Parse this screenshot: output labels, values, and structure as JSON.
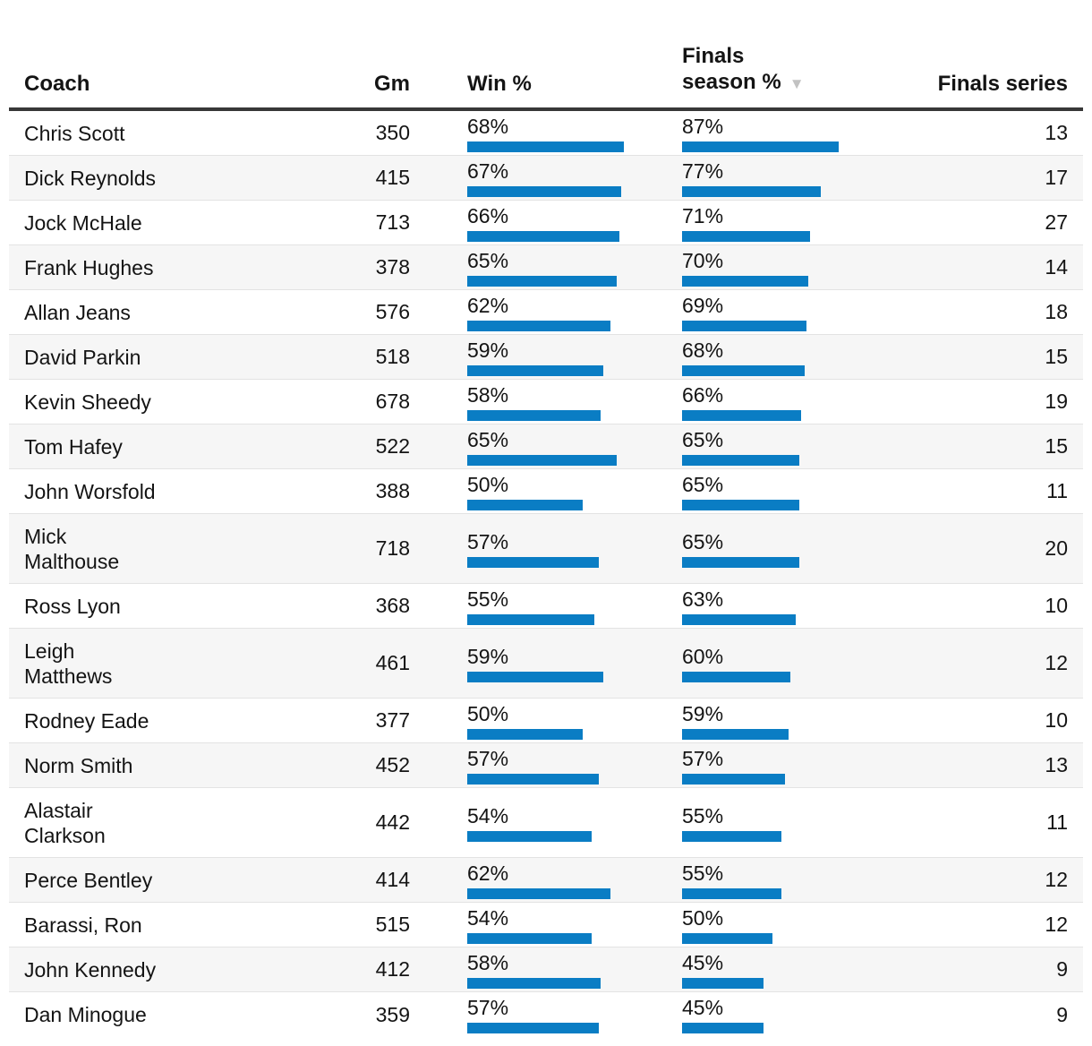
{
  "header": {
    "coach": "Coach",
    "gm": "Gm",
    "win": "Win %",
    "finals_season_line1": "Finals",
    "finals_season_line2": "season %",
    "sort_indicator": "▼",
    "finals_series": "Finals series"
  },
  "colors": {
    "bar": "#0a7dc4",
    "row_alt_background": "#f6f6f6",
    "header_border": "#383838",
    "row_border": "#e3e3e3",
    "sort_arrow": "#c2c2c2",
    "text": "#141414"
  },
  "chart_data": {
    "type": "table",
    "columns": [
      "Coach",
      "Gm",
      "Win %",
      "Finals season %",
      "Finals series"
    ],
    "sorted_by": "Finals season %",
    "sort_direction": "descending",
    "bar_columns": [
      "Win %",
      "Finals season %"
    ],
    "bar_scaling": "bars scaled to column maximum",
    "rows": [
      {
        "coach": "Chris Scott",
        "gm": 350,
        "win_pct": 68,
        "finals_season_pct": 87,
        "finals_series": 13
      },
      {
        "coach": "Dick Reynolds",
        "gm": 415,
        "win_pct": 67,
        "finals_season_pct": 77,
        "finals_series": 17
      },
      {
        "coach": "Jock McHale",
        "gm": 713,
        "win_pct": 66,
        "finals_season_pct": 71,
        "finals_series": 27
      },
      {
        "coach": "Frank Hughes",
        "gm": 378,
        "win_pct": 65,
        "finals_season_pct": 70,
        "finals_series": 14
      },
      {
        "coach": "Allan Jeans",
        "gm": 576,
        "win_pct": 62,
        "finals_season_pct": 69,
        "finals_series": 18
      },
      {
        "coach": "David Parkin",
        "gm": 518,
        "win_pct": 59,
        "finals_season_pct": 68,
        "finals_series": 15
      },
      {
        "coach": "Kevin Sheedy",
        "gm": 678,
        "win_pct": 58,
        "finals_season_pct": 66,
        "finals_series": 19
      },
      {
        "coach": "Tom Hafey",
        "gm": 522,
        "win_pct": 65,
        "finals_season_pct": 65,
        "finals_series": 15
      },
      {
        "coach": "John Worsfold",
        "gm": 388,
        "win_pct": 50,
        "finals_season_pct": 65,
        "finals_series": 11
      },
      {
        "coach": "Mick Malthouse",
        "coach_lines": [
          "Mick",
          "Malthouse"
        ],
        "gm": 718,
        "win_pct": 57,
        "finals_season_pct": 65,
        "finals_series": 20
      },
      {
        "coach": "Ross Lyon",
        "gm": 368,
        "win_pct": 55,
        "finals_season_pct": 63,
        "finals_series": 10
      },
      {
        "coach": "Leigh Matthews",
        "coach_lines": [
          "Leigh",
          "Matthews"
        ],
        "gm": 461,
        "win_pct": 59,
        "finals_season_pct": 60,
        "finals_series": 12
      },
      {
        "coach": "Rodney Eade",
        "gm": 377,
        "win_pct": 50,
        "finals_season_pct": 59,
        "finals_series": 10
      },
      {
        "coach": "Norm Smith",
        "gm": 452,
        "win_pct": 57,
        "finals_season_pct": 57,
        "finals_series": 13
      },
      {
        "coach": "Alastair Clarkson",
        "coach_lines": [
          "Alastair",
          "Clarkson"
        ],
        "gm": 442,
        "win_pct": 54,
        "finals_season_pct": 55,
        "finals_series": 11
      },
      {
        "coach": "Perce Bentley",
        "gm": 414,
        "win_pct": 62,
        "finals_season_pct": 55,
        "finals_series": 12
      },
      {
        "coach": "Barassi, Ron",
        "gm": 515,
        "win_pct": 54,
        "finals_season_pct": 50,
        "finals_series": 12
      },
      {
        "coach": "John Kennedy",
        "gm": 412,
        "win_pct": 58,
        "finals_season_pct": 45,
        "finals_series": 9
      },
      {
        "coach": "Dan Minogue",
        "gm": 359,
        "win_pct": 57,
        "finals_season_pct": 45,
        "finals_series": 9
      }
    ]
  }
}
